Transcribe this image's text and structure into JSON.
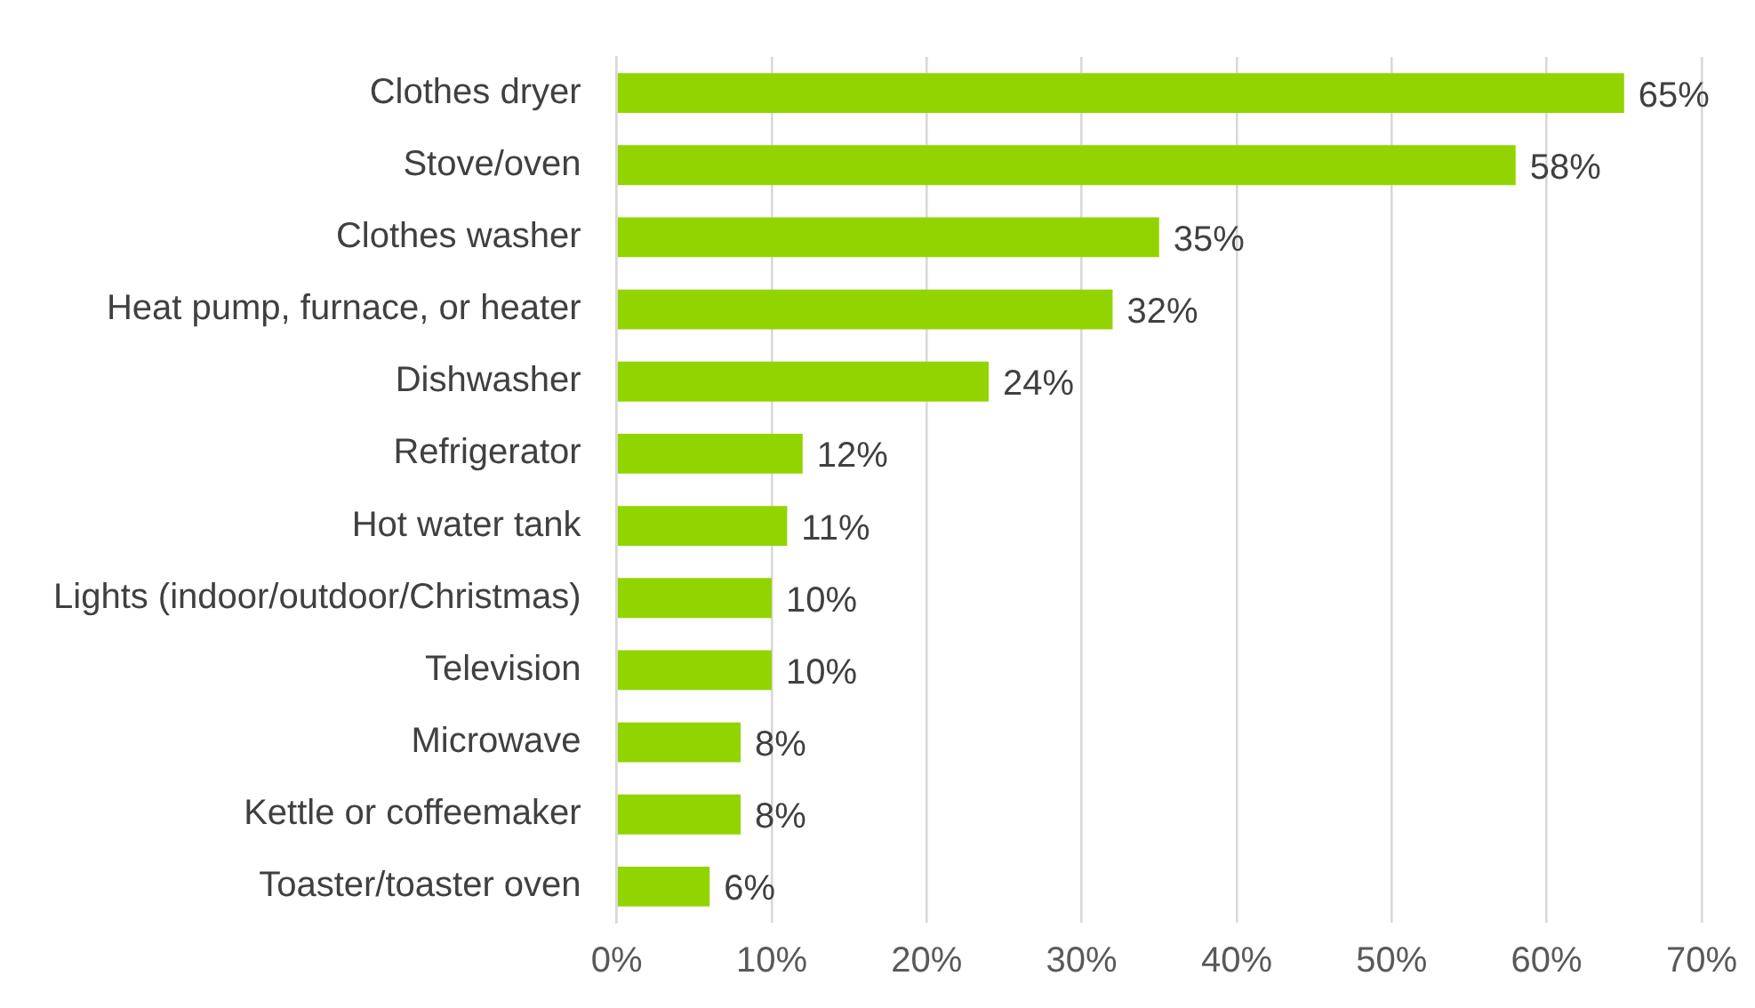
{
  "chart_data": {
    "type": "bar",
    "orientation": "horizontal",
    "categories": [
      "Clothes dryer",
      "Stove/oven",
      "Clothes washer",
      "Heat pump, furnace, or heater",
      "Dishwasher",
      "Refrigerator",
      "Hot water tank",
      "Lights (indoor/outdoor/Christmas)",
      "Television",
      "Microwave",
      "Kettle or coffeemaker",
      "Toaster/toaster oven"
    ],
    "values": [
      65,
      58,
      35,
      32,
      24,
      12,
      11,
      10,
      10,
      8,
      8,
      6
    ],
    "value_labels": [
      "65%",
      "58%",
      "35%",
      "32%",
      "24%",
      "12%",
      "11%",
      "10%",
      "10%",
      "8%",
      "8%",
      "6%"
    ],
    "color": "#92d400",
    "xlim": [
      0,
      70
    ],
    "xticks": [
      {
        "value": 0,
        "label": "0%"
      },
      {
        "value": 10,
        "label": "10%"
      },
      {
        "value": 20,
        "label": "20%"
      },
      {
        "value": 30,
        "label": "30%"
      },
      {
        "value": 40,
        "label": "40%"
      },
      {
        "value": 50,
        "label": "50%"
      },
      {
        "value": 60,
        "label": "60%"
      },
      {
        "value": 70,
        "label": "70%"
      }
    ],
    "grid": "x",
    "legend": false
  }
}
